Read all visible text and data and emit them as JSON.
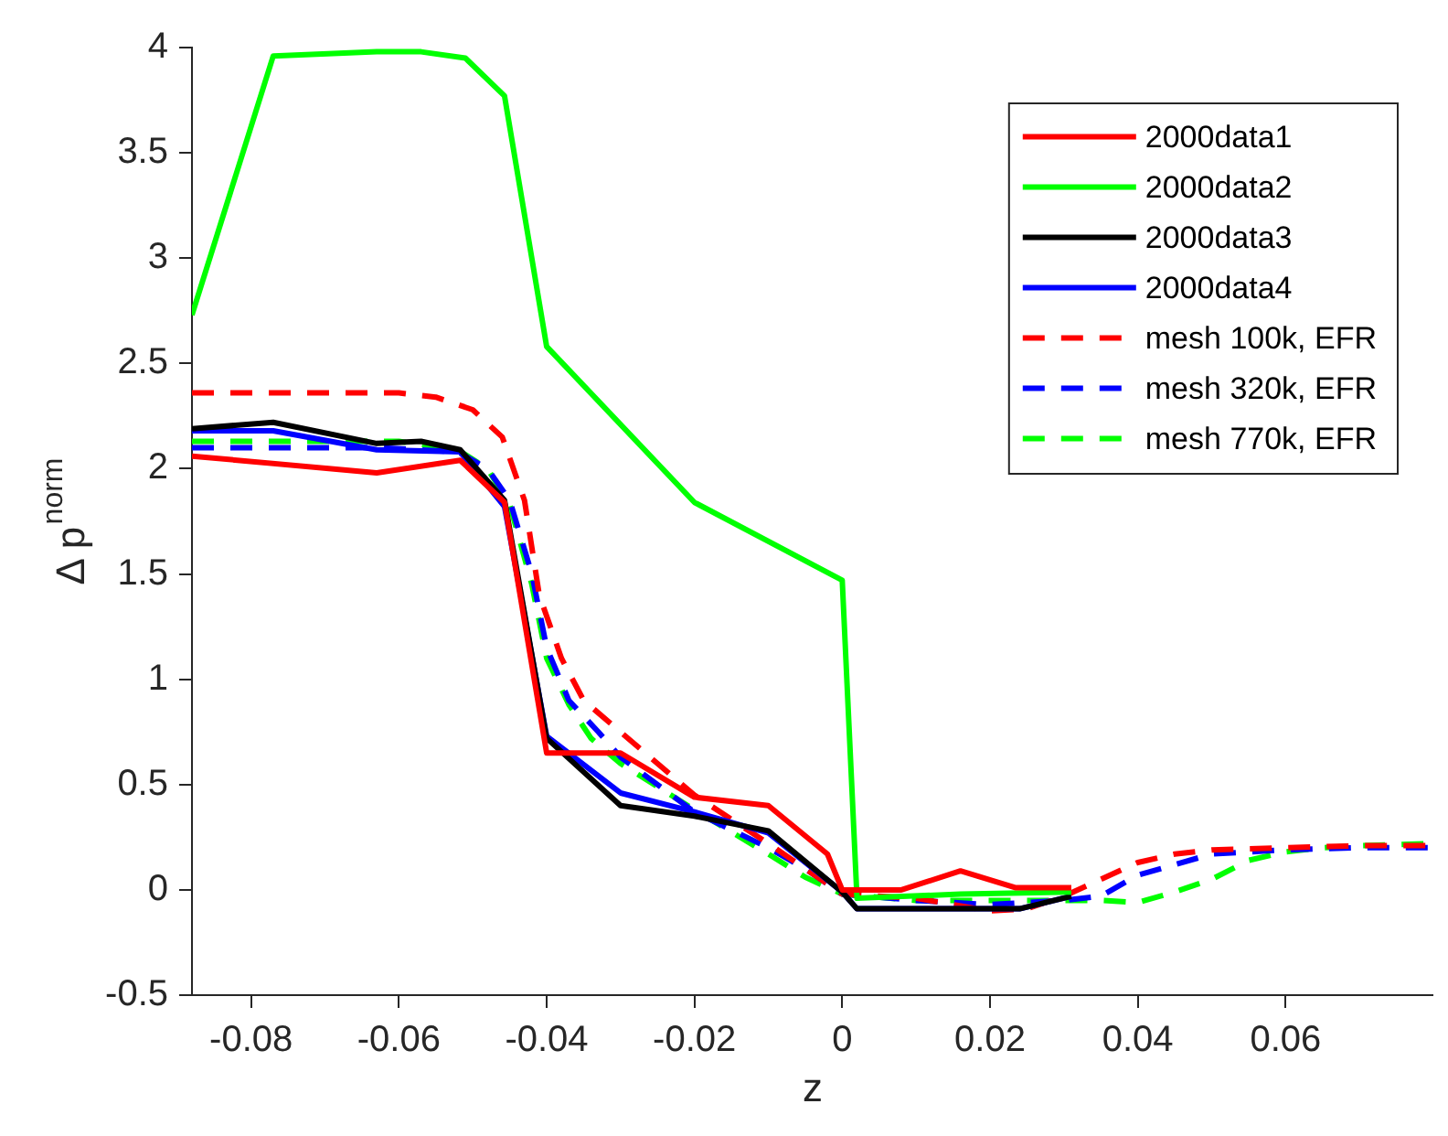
{
  "chart_data": {
    "type": "line",
    "xlabel": "z",
    "ylabel": "Δ p$^{norm}$",
    "xlim": [
      -0.088,
      0.08
    ],
    "ylim": [
      -0.5,
      4
    ],
    "xticks": [
      -0.08,
      -0.06,
      -0.04,
      -0.02,
      0,
      0.02,
      0.04,
      0.06
    ],
    "yticks": [
      -0.5,
      0,
      0.5,
      1,
      1.5,
      2,
      2.5,
      3,
      3.5,
      4
    ],
    "grid": false,
    "legend": "top right",
    "marker": "none",
    "series": [
      {
        "name": "2000data1",
        "color": "#ff0000",
        "line_style": "solid",
        "x": [
          -0.088,
          -0.063,
          -0.0517,
          -0.0457,
          -0.04,
          -0.03,
          -0.02,
          -0.01,
          -0.002,
          0,
          0.002,
          0.008,
          0.016,
          0.0235,
          0.031
        ],
        "values": [
          2.06,
          1.98,
          2.04,
          1.84,
          0.65,
          0.65,
          0.44,
          0.4,
          0.17,
          0,
          0,
          0,
          0.09,
          0.01,
          0.01
        ]
      },
      {
        "name": "2000data2",
        "color": "#00ff00",
        "line_style": "solid",
        "x": [
          -0.088,
          -0.077,
          -0.063,
          -0.057,
          -0.051,
          -0.0457,
          -0.04,
          -0.02,
          0,
          0.002,
          0.016,
          0.031
        ],
        "values": [
          2.73,
          3.96,
          3.98,
          3.98,
          3.95,
          3.77,
          2.58,
          1.84,
          1.47,
          -0.04,
          -0.02,
          -0.01
        ]
      },
      {
        "name": "2000data3",
        "color": "#000000",
        "line_style": "solid",
        "x": [
          -0.088,
          -0.077,
          -0.063,
          -0.057,
          -0.0517,
          -0.0457,
          -0.04,
          -0.03,
          -0.02,
          -0.01,
          0,
          0.002,
          0.024,
          0.031
        ],
        "values": [
          2.19,
          2.22,
          2.12,
          2.13,
          2.09,
          1.85,
          0.72,
          0.4,
          0.35,
          0.28,
          -0.01,
          -0.09,
          -0.09,
          -0.03
        ]
      },
      {
        "name": "2000data4",
        "color": "#0000ff",
        "line_style": "solid",
        "x": [
          -0.088,
          -0.077,
          -0.063,
          -0.0517,
          -0.0457,
          -0.04,
          -0.03,
          -0.02,
          -0.01,
          0,
          0.002,
          0.024,
          0.031
        ],
        "values": [
          2.18,
          2.18,
          2.09,
          2.08,
          1.82,
          0.73,
          0.46,
          0.37,
          0.27,
          -0.01,
          -0.09,
          -0.09,
          -0.03
        ]
      },
      {
        "name": "mesh 100k, EFR",
        "color": "#ff0000",
        "line_style": "dashed",
        "x": [
          -0.088,
          -0.06,
          -0.055,
          -0.05,
          -0.046,
          -0.043,
          -0.041,
          -0.038,
          -0.035,
          -0.03,
          -0.025,
          -0.02,
          -0.01,
          -0.005,
          0,
          0.01,
          0.02,
          0.025,
          0.03,
          0.035,
          0.04,
          0.045,
          0.05,
          0.06,
          0.07,
          0.08
        ],
        "values": [
          2.36,
          2.36,
          2.34,
          2.28,
          2.15,
          1.85,
          1.4,
          1.1,
          0.9,
          0.75,
          0.6,
          0.45,
          0.22,
          0.1,
          -0.02,
          -0.04,
          -0.1,
          -0.09,
          -0.03,
          0.05,
          0.13,
          0.17,
          0.19,
          0.2,
          0.21,
          0.21
        ]
      },
      {
        "name": "mesh 320k, EFR",
        "color": "#0000ff",
        "line_style": "dashed",
        "x": [
          -0.088,
          -0.063,
          -0.052,
          -0.048,
          -0.045,
          -0.042,
          -0.04,
          -0.037,
          -0.033,
          -0.03,
          -0.02,
          -0.01,
          -0.005,
          0,
          0.01,
          0.02,
          0.03,
          0.035,
          0.04,
          0.045,
          0.05,
          0.055,
          0.06,
          0.07,
          0.08
        ],
        "values": [
          2.1,
          2.1,
          2.08,
          2,
          1.85,
          1.5,
          1.15,
          0.9,
          0.75,
          0.63,
          0.37,
          0.2,
          0.1,
          -0.02,
          -0.05,
          -0.07,
          -0.05,
          -0.03,
          0.07,
          0.12,
          0.17,
          0.18,
          0.19,
          0.2,
          0.2
        ]
      },
      {
        "name": "mesh 770k, EFR",
        "color": "#00ff00",
        "line_style": "dashed",
        "x": [
          -0.088,
          -0.06,
          -0.052,
          -0.048,
          -0.045,
          -0.042,
          -0.04,
          -0.037,
          -0.034,
          -0.03,
          -0.02,
          -0.01,
          -0.005,
          0,
          0.01,
          0.02,
          0.03,
          0.035,
          0.04,
          0.045,
          0.05,
          0.055,
          0.06,
          0.065,
          0.07,
          0.08
        ],
        "values": [
          2.13,
          2.13,
          2.09,
          2,
          1.83,
          1.45,
          1.1,
          0.88,
          0.72,
          0.6,
          0.38,
          0.17,
          0.06,
          -0.02,
          -0.05,
          -0.05,
          -0.05,
          -0.05,
          -0.06,
          -0.01,
          0.05,
          0.14,
          0.18,
          0.2,
          0.21,
          0.22
        ]
      }
    ]
  }
}
